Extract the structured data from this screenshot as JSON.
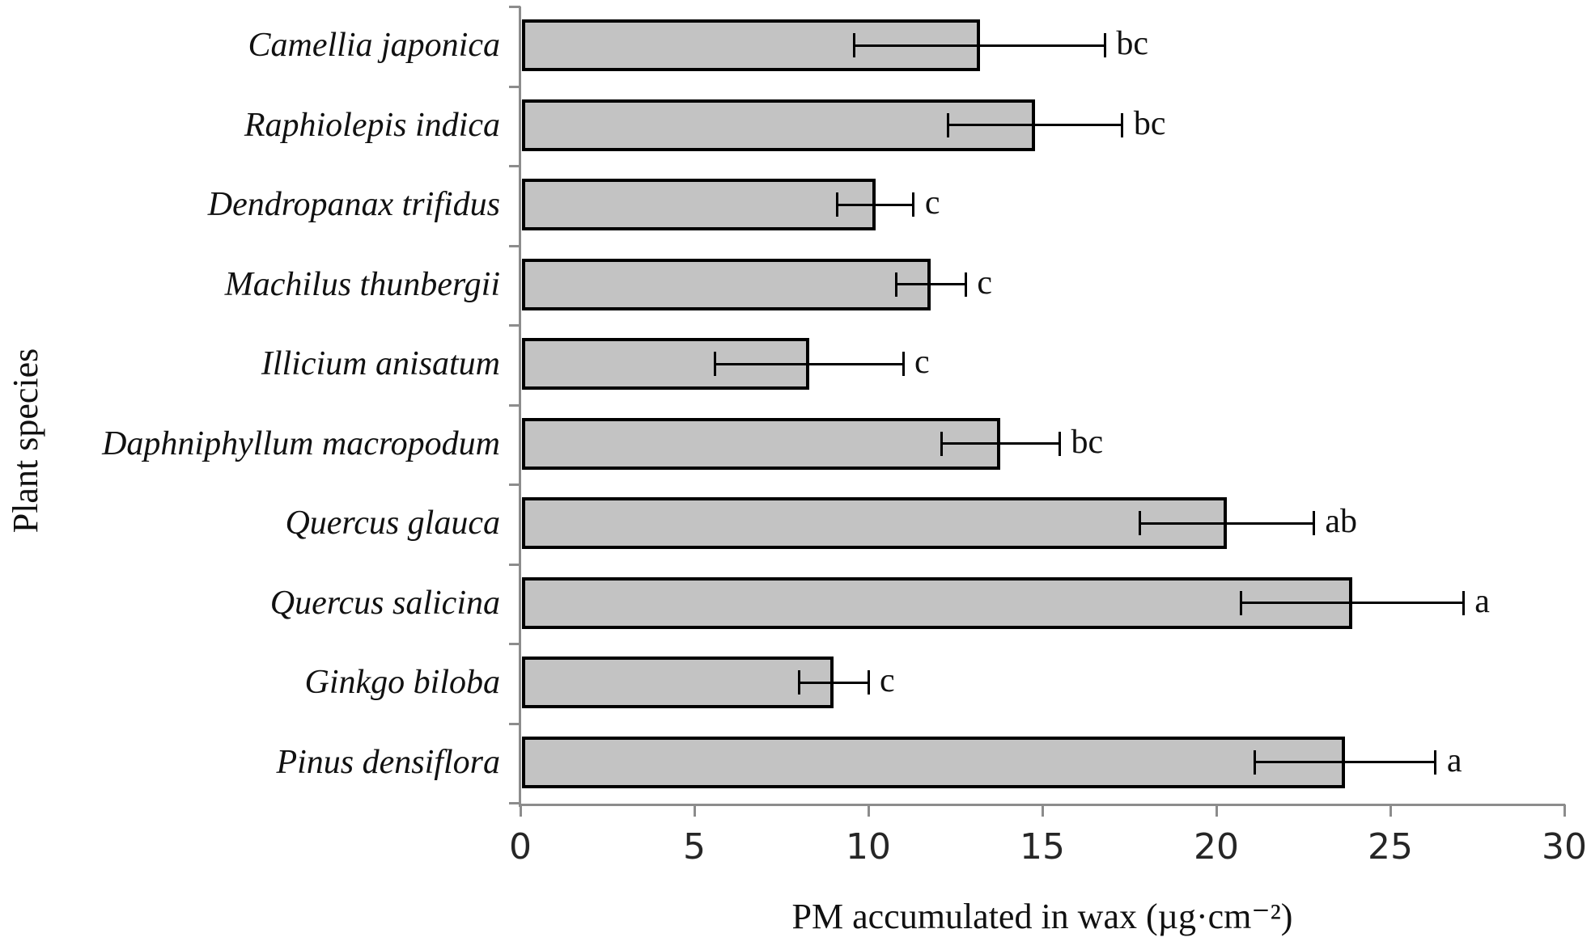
{
  "chart_data": {
    "type": "bar",
    "orientation": "horizontal",
    "xlabel": "PM accumulated in wax (µg·cm⁻²)",
    "ylabel": "Plant species",
    "xlim": [
      0,
      30
    ],
    "xticks": [
      "0",
      "5",
      "10",
      "15",
      "20",
      "25",
      "30"
    ],
    "xtick_values": [
      0,
      5,
      10,
      15,
      20,
      25,
      30
    ],
    "grid": false,
    "legend": "none",
    "bar_fill_color": "#c3c3c3",
    "bar_border_color": "#000000",
    "error_bar_color": "#000000",
    "axis_color": "#8c8c8c",
    "series": [
      {
        "species": "Camellia japonica",
        "value": 13.2,
        "error": 3.6,
        "letter": "bc"
      },
      {
        "species": "Raphiolepis indica",
        "value": 14.8,
        "error": 2.5,
        "letter": "bc"
      },
      {
        "species": "Dendropanax trifidus",
        "value": 10.2,
        "error": 1.1,
        "letter": "c"
      },
      {
        "species": "Machilus thunbergii",
        "value": 11.8,
        "error": 1.0,
        "letter": "c"
      },
      {
        "species": "Illicium anisatum",
        "value": 8.3,
        "error": 2.7,
        "letter": "c"
      },
      {
        "species": "Daphniphyllum macropodum",
        "value": 13.8,
        "error": 1.7,
        "letter": "bc"
      },
      {
        "species": "Quercus glauca",
        "value": 20.3,
        "error": 2.5,
        "letter": "ab"
      },
      {
        "species": "Quercus salicina",
        "value": 23.9,
        "error": 3.2,
        "letter": "a"
      },
      {
        "species": "Ginkgo biloba",
        "value": 9.0,
        "error": 1.0,
        "letter": "c"
      },
      {
        "species": "Pinus densiflora",
        "value": 23.7,
        "error": 2.6,
        "letter": "a"
      }
    ]
  }
}
